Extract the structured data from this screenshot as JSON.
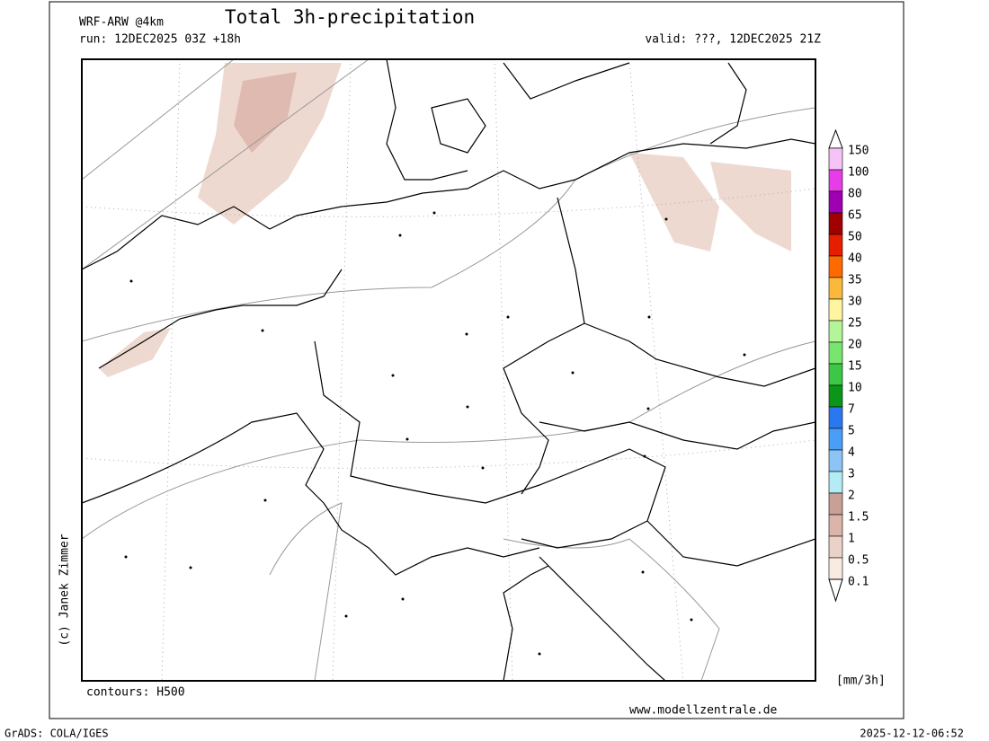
{
  "header": {
    "model": "WRF-ARW @4km",
    "title": "Total 3h-precipitation",
    "run": "run: 12DEC2025 03Z +18h",
    "valid": "valid: ???, 12DEC2025 21Z"
  },
  "legend": {
    "levels": [
      150,
      100,
      80,
      65,
      50,
      40,
      35,
      30,
      25,
      20,
      15,
      10,
      7,
      5,
      4,
      3,
      2,
      1.5,
      1,
      0.5,
      0.1
    ],
    "colors": [
      "#f5c3f5",
      "#e83ce8",
      "#a000b4",
      "#a00000",
      "#e61e00",
      "#ff6a00",
      "#fbb93c",
      "#fff5a0",
      "#b4f59a",
      "#78e66e",
      "#3cc846",
      "#0a9618",
      "#2a78f0",
      "#4a9ef5",
      "#8cc4f5",
      "#b4ecf5",
      "#c8a096",
      "#dcb4aa",
      "#ebd2c8",
      "#faebe1"
    ],
    "unit": "[mm/3h]"
  },
  "map": {
    "credit": "(c) Janek Zimmer",
    "contours": "contours: H500",
    "website": "www.modellzentrale.de"
  },
  "footer": {
    "software": "GrADS: COLA/IGES",
    "timestamp": "2025-12-12-06:52"
  }
}
